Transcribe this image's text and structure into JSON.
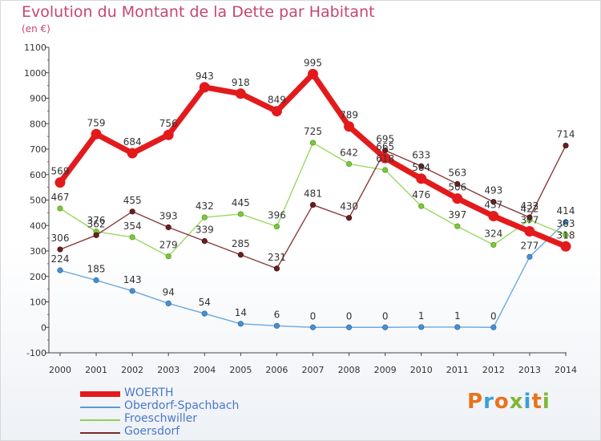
{
  "header": {
    "title": "Evolution du Montant de la Dette par Habitant",
    "subtitle": "(en €)"
  },
  "logo": {
    "text": "Proxiti",
    "colors": [
      "#e8731c",
      "#3a9fd8",
      "#e8731c",
      "#7fb832",
      "#3a9fd8",
      "#e8731c",
      "#7fb832"
    ]
  },
  "chart_data": {
    "type": "line",
    "title": "Evolution du Montant de la Dette par Habitant",
    "subtitle": "(en €)",
    "xlabel": "",
    "ylabel": "",
    "x": [
      "2000",
      "2001",
      "2002",
      "2003",
      "2004",
      "2005",
      "2006",
      "2007",
      "2008",
      "2009",
      "2010",
      "2011",
      "2012",
      "2013",
      "2014"
    ],
    "ylim": [
      -100,
      1100
    ],
    "yticks": [
      -100,
      0,
      100,
      200,
      300,
      400,
      500,
      600,
      700,
      800,
      900,
      1000,
      1100
    ],
    "grid": false,
    "legend_position": "bottom-left",
    "series": [
      {
        "name": "WOERTH",
        "color": "#e31a1c",
        "values": [
          569,
          759,
          684,
          756,
          943,
          918,
          849,
          995,
          789,
          665,
          584,
          506,
          437,
          377,
          318
        ]
      },
      {
        "name": "Oberdorf-Spachbach",
        "color": "#5b9bd5",
        "values": [
          224,
          185,
          143,
          94,
          54,
          14,
          6,
          0,
          0,
          0,
          1,
          1,
          0,
          277,
          414
        ]
      },
      {
        "name": "Froeschwiller",
        "color": "#8fd14f",
        "values": [
          467,
          376,
          354,
          279,
          432,
          445,
          396,
          725,
          642,
          618,
          476,
          397,
          324,
          422,
          363
        ]
      },
      {
        "name": "Goersdorf",
        "color": "#7b2c2c",
        "values": [
          306,
          362,
          455,
          393,
          339,
          285,
          231,
          481,
          430,
          695,
          633,
          563,
          493,
          432,
          714
        ]
      }
    ]
  }
}
